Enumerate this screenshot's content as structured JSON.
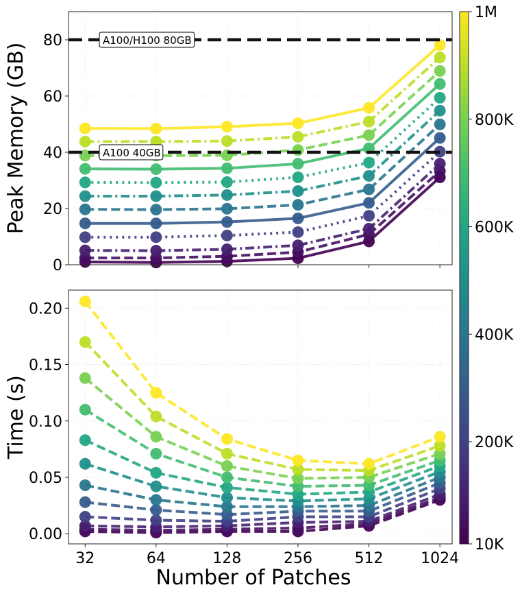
{
  "chart_data": [
    {
      "type": "line",
      "ylabel": "Peak Memory (GB)",
      "xlabel": "",
      "x": [
        32,
        64,
        128,
        256,
        512,
        1024
      ],
      "x_scale": "log2",
      "x_tick_labels": [
        "32",
        "64",
        "128",
        "256",
        "512",
        "1024"
      ],
      "ylim": [
        0,
        90
      ],
      "y_ticks": [
        0,
        20,
        40,
        60,
        80
      ],
      "grid": true,
      "reference_lines": [
        {
          "y": 80,
          "label": "A100/H100 80GB",
          "color": "#111111",
          "style": "dashed"
        },
        {
          "y": 40,
          "label": "A100 40GB",
          "color": "#111111",
          "style": "dashed"
        }
      ],
      "series": [
        {
          "param": 10000,
          "style": "solid",
          "values": [
            1.0,
            0.8,
            1.2,
            2.3,
            8.3,
            31.1
          ]
        },
        {
          "param": 50000,
          "style": "dashed",
          "values": [
            2.4,
            2.4,
            3.0,
            4.5,
            10.8,
            33.3
          ]
        },
        {
          "param": 100000,
          "style": "dashdot",
          "values": [
            5.1,
            5.0,
            5.5,
            6.9,
            12.8,
            35.9
          ]
        },
        {
          "param": 200000,
          "style": "dotted",
          "values": [
            9.8,
            9.8,
            10.4,
            11.6,
            17.4,
            40.2
          ]
        },
        {
          "param": 300000,
          "style": "solid",
          "values": [
            14.7,
            14.7,
            15.2,
            16.5,
            22.0,
            45.1
          ]
        },
        {
          "param": 400000,
          "style": "dashed",
          "values": [
            19.7,
            19.6,
            19.9,
            21.3,
            26.8,
            49.9
          ]
        },
        {
          "param": 500000,
          "style": "dashdot",
          "values": [
            24.4,
            24.4,
            24.8,
            26.2,
            31.6,
            54.8
          ]
        },
        {
          "param": 600000,
          "style": "dotted",
          "values": [
            29.3,
            29.2,
            29.4,
            31.1,
            36.3,
            59.4
          ]
        },
        {
          "param": 700000,
          "style": "solid",
          "values": [
            34.1,
            34.0,
            34.3,
            35.9,
            41.4,
            64.3
          ]
        },
        {
          "param": 800000,
          "style": "dashed",
          "values": [
            38.8,
            38.8,
            38.9,
            40.8,
            46.1,
            68.9
          ]
        },
        {
          "param": 900000,
          "style": "dashdot",
          "values": [
            43.8,
            43.8,
            44.0,
            45.5,
            50.9,
            73.7
          ]
        },
        {
          "param": 1000000,
          "style": "solid",
          "values": [
            48.5,
            48.4,
            49.1,
            50.3,
            55.8,
            78.1
          ]
        }
      ]
    },
    {
      "type": "line",
      "ylabel": "Time (s)",
      "xlabel": "Number of Patches",
      "x": [
        32,
        64,
        128,
        256,
        512,
        1024
      ],
      "x_scale": "log2",
      "x_tick_labels": [
        "32",
        "64",
        "128",
        "256",
        "512",
        "1024"
      ],
      "ylim": [
        -0.009,
        0.216
      ],
      "y_ticks": [
        0.0,
        0.05,
        0.1,
        0.15,
        0.2
      ],
      "y_tick_labels": [
        "0.00",
        "0.05",
        "0.10",
        "0.15",
        "0.20"
      ],
      "grid": true,
      "series": [
        {
          "param": 10000,
          "style": "dashed",
          "values": [
            0.002,
            0.001,
            0.002,
            0.002,
            0.007,
            0.03
          ]
        },
        {
          "param": 50000,
          "style": "dashed",
          "values": [
            0.004,
            0.003,
            0.004,
            0.005,
            0.009,
            0.032
          ]
        },
        {
          "param": 100000,
          "style": "dashed",
          "values": [
            0.007,
            0.006,
            0.007,
            0.01,
            0.011,
            0.035
          ]
        },
        {
          "param": 200000,
          "style": "dashed",
          "values": [
            0.015,
            0.012,
            0.011,
            0.015,
            0.015,
            0.04
          ]
        },
        {
          "param": 300000,
          "style": "dashed",
          "values": [
            0.028,
            0.021,
            0.017,
            0.02,
            0.02,
            0.045
          ]
        },
        {
          "param": 400000,
          "style": "dashed",
          "values": [
            0.043,
            0.03,
            0.024,
            0.024,
            0.025,
            0.05
          ]
        },
        {
          "param": 500000,
          "style": "dashed",
          "values": [
            0.062,
            0.042,
            0.032,
            0.029,
            0.031,
            0.055
          ]
        },
        {
          "param": 600000,
          "style": "dashed",
          "values": [
            0.083,
            0.054,
            0.041,
            0.035,
            0.037,
            0.06
          ]
        },
        {
          "param": 700000,
          "style": "dashed",
          "values": [
            0.11,
            0.071,
            0.05,
            0.042,
            0.043,
            0.065
          ]
        },
        {
          "param": 800000,
          "style": "dashed",
          "values": [
            0.138,
            0.086,
            0.06,
            0.049,
            0.05,
            0.071
          ]
        },
        {
          "param": 900000,
          "style": "dashed",
          "values": [
            0.17,
            0.104,
            0.071,
            0.057,
            0.056,
            0.078
          ]
        },
        {
          "param": 1000000,
          "style": "dashed",
          "values": [
            0.206,
            0.125,
            0.084,
            0.065,
            0.062,
            0.086
          ]
        }
      ]
    }
  ],
  "colorbar": {
    "colormap": "viridis",
    "range": [
      10000,
      1000000
    ],
    "ticks": [
      10000,
      200000,
      400000,
      600000,
      800000,
      1000000
    ],
    "tick_labels": [
      "10K",
      "200K",
      "400K",
      "600K",
      "800K",
      "1M"
    ]
  }
}
